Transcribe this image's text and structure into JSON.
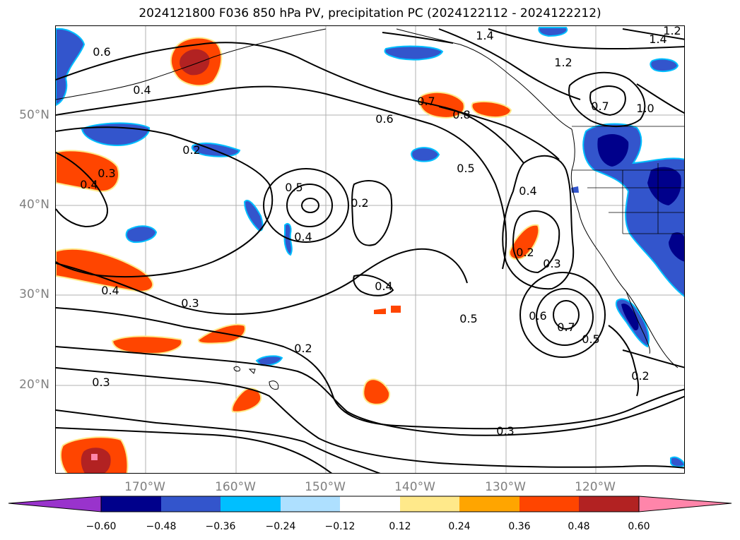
{
  "title": "2024121800 F036 850 hPa PV, precipitation PC (2024122112 - 2024122212)",
  "latitude_labels": [
    "50°N",
    "40°N",
    "30°N",
    "20°N"
  ],
  "longitude_labels": [
    "170°W",
    "160°W",
    "150°W",
    "140°W",
    "130°W",
    "120°W"
  ],
  "contour_labels": [
    "0.6",
    "0.4",
    "1.4",
    "1.2",
    "1.4",
    "1.2",
    "0.6",
    "0.7",
    "0.8",
    "0.7",
    "1.0",
    "0.2",
    "0.3",
    "0.4",
    "0.5",
    "0.2",
    "0.5",
    "0.4",
    "0.4",
    "0.2",
    "0.3",
    "0.4",
    "0.4",
    "0.3",
    "0.5",
    "0.6",
    "0.7",
    "0.5",
    "0.2",
    "0.3",
    "0.3",
    "0.2"
  ],
  "colorbar": {
    "tick_labels": [
      "−0.60",
      "−0.48",
      "−0.36",
      "−0.24",
      "−0.12",
      "0.12",
      "0.24",
      "0.36",
      "0.48",
      "0.60"
    ],
    "colors": [
      "#9933cc",
      "#00008b",
      "#3355cc",
      "#00bfff",
      "#aee0ff",
      "#ffffff",
      "#ffe98a",
      "#ffa500",
      "#ff4500",
      "#b22222",
      "#ff85aa"
    ]
  }
}
